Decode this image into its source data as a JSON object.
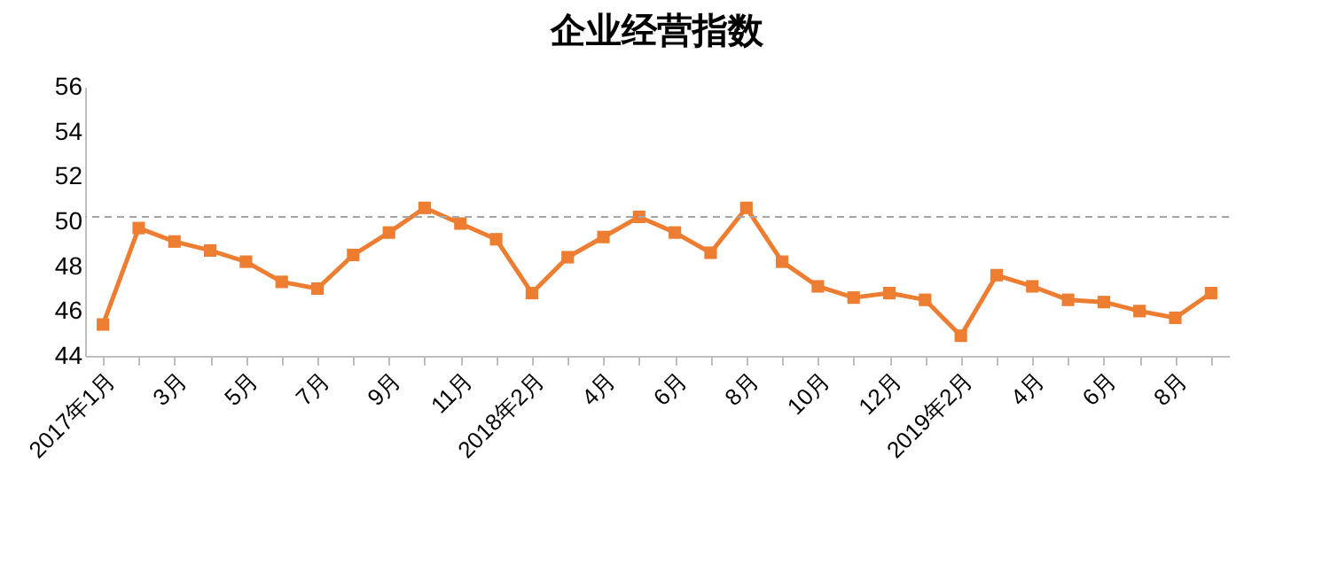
{
  "chart_data": {
    "type": "line",
    "title": "企业经营指数",
    "categories": [
      "2017年1月",
      null,
      "3月",
      null,
      "5月",
      null,
      "7月",
      null,
      "9月",
      null,
      "11月",
      null,
      "2018年2月",
      null,
      "4月",
      null,
      "6月",
      null,
      "8月",
      null,
      "10月",
      null,
      "12月",
      null,
      "2019年2月",
      null,
      "4月",
      null,
      "6月",
      null,
      "8月",
      null
    ],
    "series": [
      {
        "color": "#ed7d31",
        "values": [
          45.4,
          49.7,
          49.1,
          48.7,
          48.2,
          47.3,
          47.0,
          48.5,
          49.5,
          50.6,
          49.9,
          49.2,
          46.8,
          48.4,
          49.3,
          50.2,
          49.5,
          48.6,
          50.6,
          48.2,
          47.1,
          46.6,
          46.8,
          46.5,
          44.9,
          47.6,
          47.1,
          46.5,
          46.4,
          46.0,
          45.7,
          46.8
        ]
      }
    ],
    "ylim": [
      44,
      56
    ],
    "yticks": [
      44,
      46,
      48,
      50,
      52,
      54,
      56
    ],
    "ref_lines": [
      {
        "axis": "y",
        "value": 50.2,
        "color": "#a6a6a6",
        "line_style": "dashed"
      }
    ],
    "marker": "square",
    "line_style": "solid",
    "grid": false
  }
}
